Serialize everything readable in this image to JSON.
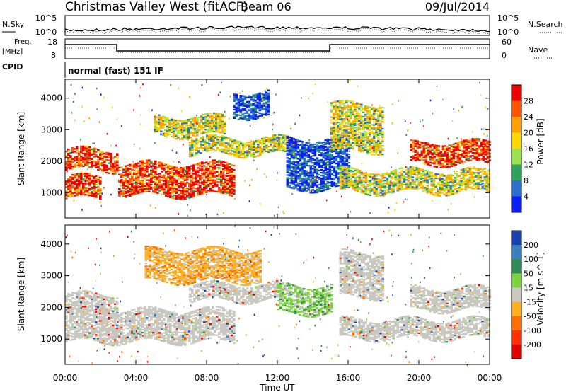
{
  "header": {
    "station": "Christmas Valley West (fitACF)",
    "beam": "Beam 06",
    "date": "09/Jul/2014"
  },
  "noise_panel": {
    "left_label": "N.Sky",
    "left_ticks": [
      "10^5",
      "10^0"
    ],
    "right_label": "N.Search",
    "right_ticks": [
      "10^5",
      "10^0"
    ]
  },
  "freq_panel": {
    "left_label_line1": "Freq.",
    "left_label_line2": "[MHz]",
    "left_ticks": [
      "18",
      "8"
    ],
    "right_label": "Nave",
    "right_ticks": [
      "60",
      "0"
    ]
  },
  "cpid": {
    "label": "CPID",
    "value": "normal (fast) 151 IF"
  },
  "x_axis": {
    "label": "Time UT",
    "ticks": [
      "00:00",
      "04:00",
      "08:00",
      "12:00",
      "16:00",
      "20:00",
      "00:00"
    ]
  },
  "chart_data": [
    {
      "type": "heatmap",
      "title": "",
      "xlabel": "Time UT",
      "ylabel": "Slant Range [km]",
      "xlim": [
        0,
        24
      ],
      "ylim": [
        200,
        4600
      ],
      "yticks": [
        "1000",
        "2000",
        "3000",
        "4000"
      ],
      "colorbar": {
        "label": "Power [dB]",
        "ticks": [
          "28",
          "24",
          "20",
          "16",
          "12",
          "8",
          "4"
        ],
        "colors": [
          "#ee0000",
          "#ff5500",
          "#ffa000",
          "#ffd700",
          "#9be34b",
          "#2ea05a",
          "#2a6fd0",
          "#0a1ff5"
        ]
      },
      "bands": [
        {
          "t0": 0.0,
          "t1": 3.0,
          "range_start": 1700,
          "range_end": 2350,
          "level": "strong"
        },
        {
          "t0": 0.0,
          "t1": 2.0,
          "range_start": 800,
          "range_end": 1500,
          "level": "strong"
        },
        {
          "t0": 3.0,
          "t1": 9.5,
          "range_start": 900,
          "range_end": 1900,
          "level": "strong"
        },
        {
          "t0": 5.0,
          "t1": 9.0,
          "range_start": 2800,
          "range_end": 3400,
          "level": "medium"
        },
        {
          "t0": 7.0,
          "t1": 13.0,
          "range_start": 2200,
          "range_end": 2700,
          "level": "medium"
        },
        {
          "t0": 9.5,
          "t1": 11.5,
          "range_start": 3400,
          "range_end": 4200,
          "level": "weak"
        },
        {
          "t0": 12.5,
          "t1": 16.0,
          "range_start": 1100,
          "range_end": 2700,
          "level": "weak"
        },
        {
          "t0": 15.0,
          "t1": 18.0,
          "range_start": 2300,
          "range_end": 3800,
          "level": "medium"
        },
        {
          "t0": 15.5,
          "t1": 24.0,
          "range_start": 1000,
          "range_end": 1700,
          "level": "medium"
        },
        {
          "t0": 19.5,
          "t1": 24.0,
          "range_start": 1900,
          "range_end": 2600,
          "level": "strong"
        }
      ]
    },
    {
      "type": "heatmap",
      "title": "",
      "xlabel": "Time UT",
      "ylabel": "Slant Range [km]",
      "xlim": [
        0,
        24
      ],
      "ylim": [
        200,
        4600
      ],
      "yticks": [
        "1000",
        "2000",
        "3000",
        "4000"
      ],
      "colorbar": {
        "label": "Velocity [m s^-1]",
        "ticks": [
          "200",
          "100",
          "50",
          "15",
          "-15",
          "-50",
          "-100",
          "-200"
        ],
        "colors": [
          "#1a3fb0",
          "#3b7ec0",
          "#2e8b57",
          "#7cd23c",
          "#c8c8c0",
          "#ffb020",
          "#ff7000",
          "#ff3000",
          "#e00000"
        ]
      },
      "bands": [
        {
          "t0": 0.0,
          "t1": 3.0,
          "range_start": 1800,
          "range_end": 2400,
          "level": "ground"
        },
        {
          "t0": 0.0,
          "t1": 9.5,
          "range_start": 900,
          "range_end": 1900,
          "level": "ground"
        },
        {
          "t0": 4.5,
          "t1": 11.0,
          "range_start": 2800,
          "range_end": 3800,
          "level": "neg"
        },
        {
          "t0": 7.0,
          "t1": 12.0,
          "range_start": 2200,
          "range_end": 2700,
          "level": "ground"
        },
        {
          "t0": 12.0,
          "t1": 15.0,
          "range_start": 1800,
          "range_end": 2700,
          "level": "pos"
        },
        {
          "t0": 15.5,
          "t1": 18.0,
          "range_start": 2300,
          "range_end": 3700,
          "level": "ground"
        },
        {
          "t0": 15.5,
          "t1": 24.0,
          "range_start": 1000,
          "range_end": 1600,
          "level": "ground"
        },
        {
          "t0": 19.5,
          "t1": 24.0,
          "range_start": 1900,
          "range_end": 2600,
          "level": "ground"
        }
      ]
    }
  ]
}
